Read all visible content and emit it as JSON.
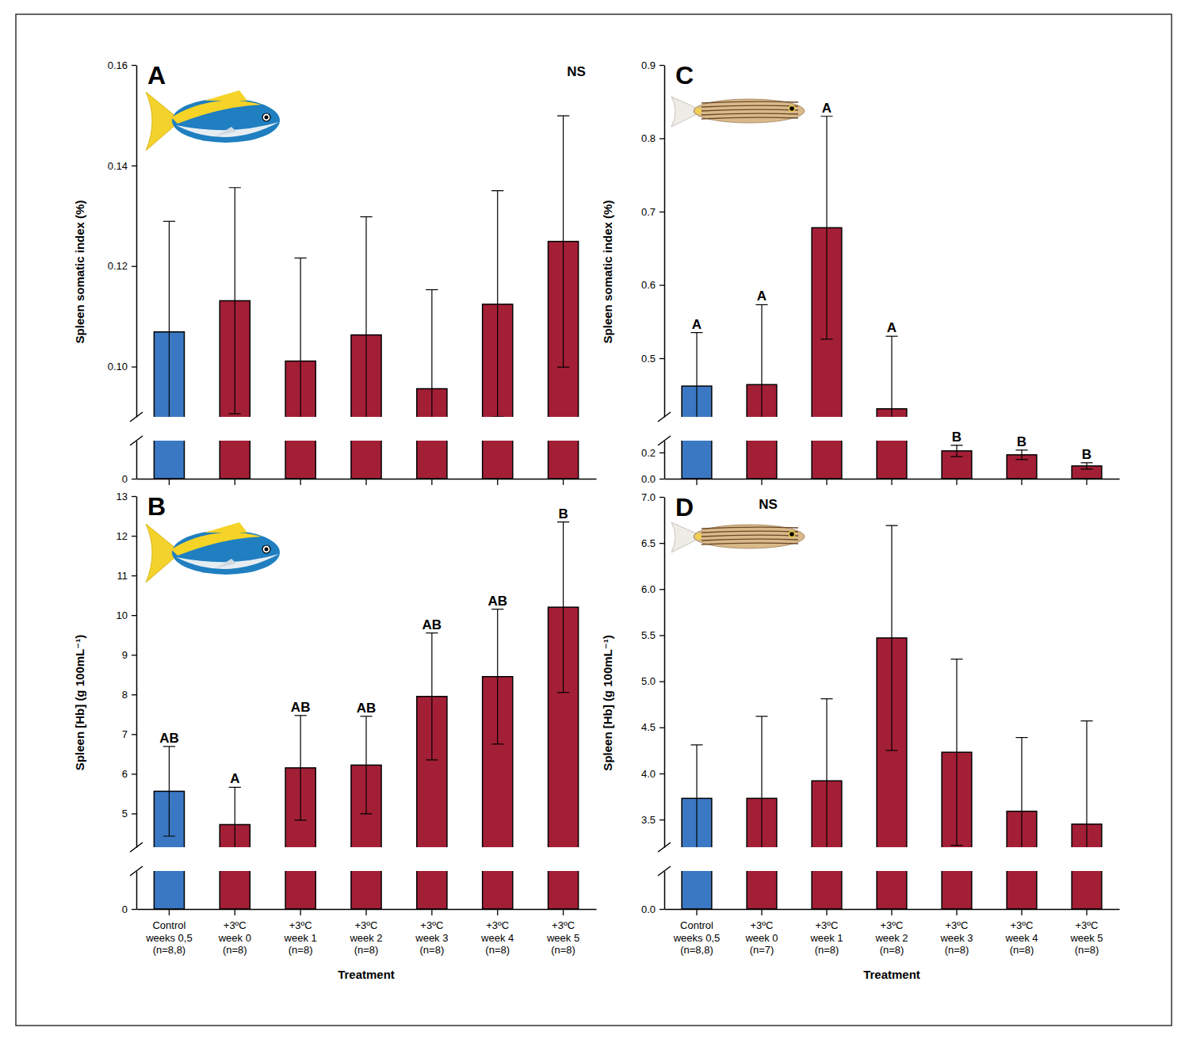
{
  "chart_data": [
    {
      "type": "bar",
      "title": "A",
      "annotation": "NS",
      "categories": [
        null,
        null,
        null,
        null,
        null,
        null,
        null
      ],
      "values": [
        0.1069,
        0.1131,
        0.1011,
        0.1063,
        0.0956,
        0.1124,
        0.1249
      ],
      "errors": [
        0.022,
        0.0225,
        0.0205,
        0.0235,
        0.0197,
        0.0226,
        0.025
      ],
      "colors": [
        "#3b78c3",
        "#a31f36",
        "#a31f36",
        "#a31f36",
        "#a31f36",
        "#a31f36",
        "#a31f36"
      ],
      "ylim": [
        0,
        0.16
      ],
      "ybreak": [
        0.01,
        0.09
      ],
      "yticks": [
        0,
        {
          "value": 0.1,
          "label": "0.10"
        },
        0.12,
        0.14,
        0.16
      ],
      "ylabel": "Spleen somatic index (%)",
      "grid": false
    },
    {
      "type": "bar",
      "title": "B",
      "categories": [
        "Control\nweeks 0,5\n(n=8,8)",
        "+3ºC\nweek 0\n(n=8)",
        "+3ºC\nweek 1\n(n=8)",
        "+3ºC\nweek 2\n(n=8)",
        "+3ºC\nweek 3\n(n=8)",
        "+3ºC\nweek 4\n(n=8)",
        "+3ºC\nweek 5\n(n=8)"
      ],
      "values": [
        5.56,
        4.72,
        6.15,
        6.22,
        7.95,
        8.45,
        10.2
      ],
      "errors": [
        1.13,
        0.94,
        1.32,
        1.23,
        1.6,
        1.7,
        2.15
      ],
      "sig_labels": [
        "AB",
        "A",
        "AB",
        "AB",
        "AB",
        "AB",
        "B"
      ],
      "colors": [
        "#3b78c3",
        "#a31f36",
        "#a31f36",
        "#a31f36",
        "#a31f36",
        "#a31f36",
        "#a31f36"
      ],
      "ylim": [
        0,
        13
      ],
      "ybreak": [
        0.5,
        4.15
      ],
      "yticks": [
        0,
        5,
        6,
        7,
        8,
        9,
        10,
        11,
        12,
        13
      ],
      "ylabel": "Spleen [Hb] (g 100mL⁻¹)",
      "xlabel": "Treatment",
      "grid": false
    },
    {
      "type": "bar",
      "title": "C",
      "categories": [
        null,
        null,
        null,
        null,
        null,
        null,
        null
      ],
      "values": [
        0.462,
        0.464,
        0.678,
        0.431,
        0.212,
        0.182,
        0.097
      ],
      "errors": [
        0.073,
        0.109,
        0.152,
        0.099,
        0.043,
        0.036,
        0.024
      ],
      "sig_labels": [
        "A",
        "A",
        "A",
        "A",
        "B",
        "B",
        "B"
      ],
      "colors": [
        "#3b78c3",
        "#a31f36",
        "#a31f36",
        "#a31f36",
        "#a31f36",
        "#a31f36",
        "#a31f36"
      ],
      "ylim": [
        0,
        0.9
      ],
      "ybreak": [
        0.29,
        0.42
      ],
      "yticks": [
        {
          "value": 0,
          "label": "0.0"
        },
        0.2,
        0.5,
        0.6,
        0.7,
        0.8,
        0.9
      ],
      "ylabel": "Spleen somatic index (%)",
      "grid": false
    },
    {
      "type": "bar",
      "title": "D",
      "annotation": "NS",
      "categories": [
        "Control\nweeks 0,5\n(n=8,8)",
        "+3ºC\nweek 0\n(n=7)",
        "+3ºC\nweek 1\n(n=8)",
        "+3ºC\nweek 2\n(n=8)",
        "+3ºC\nweek 3\n(n=8)",
        "+3ºC\nweek 4\n(n=8)",
        "+3ºC\nweek 5\n(n=8)"
      ],
      "values": [
        3.73,
        3.73,
        3.92,
        5.47,
        4.23,
        3.59,
        3.45
      ],
      "errors": [
        0.58,
        0.89,
        0.89,
        1.22,
        1.01,
        0.8,
        1.12
      ],
      "colors": [
        "#3b78c3",
        "#a31f36",
        "#a31f36",
        "#a31f36",
        "#a31f36",
        "#a31f36",
        "#a31f36"
      ],
      "ylim": [
        0,
        7
      ],
      "ybreak": [
        0.3,
        3.2
      ],
      "yticks": [
        {
          "value": 0,
          "label": "0.0"
        },
        3.5,
        {
          "value": 4,
          "label": "4.0"
        },
        4.5,
        {
          "value": 5,
          "label": "5.0"
        },
        5.5,
        {
          "value": 6,
          "label": "6.0"
        },
        6.5,
        {
          "value": 7,
          "label": "7.0"
        }
      ],
      "ylabel": "Spleen [Hb] (g 100mL⁻¹)",
      "xlabel": "Treatment",
      "grid": false
    }
  ]
}
